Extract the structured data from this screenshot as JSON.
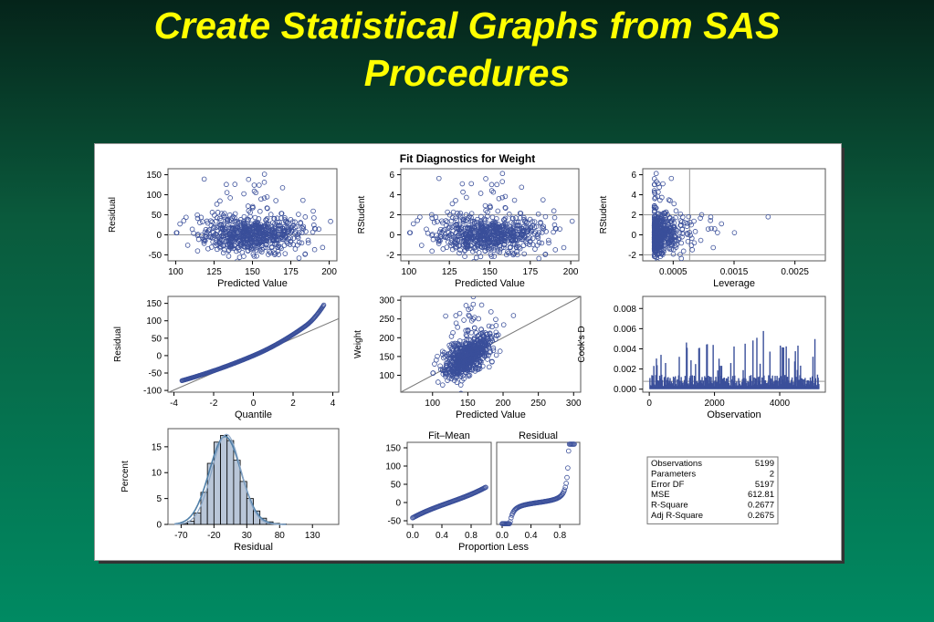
{
  "slide": {
    "title_line1": "Create Statistical Graphs from SAS",
    "title_line2": "Procedures"
  },
  "colors": {
    "background_top": "#05241a",
    "background_bottom": "#008a62",
    "title": "#ffff00",
    "marker": "#3a4f9a"
  },
  "chart_data": {
    "type": "panel",
    "title": "Fit Diagnostics for Weight",
    "plots": [
      {
        "type": "scatter",
        "xlabel": "Predicted Value",
        "ylabel": "Residual",
        "xticks": [
          100,
          125,
          150,
          175,
          200
        ],
        "yticks": [
          -50,
          0,
          50,
          100,
          150
        ],
        "xlim": [
          95,
          205
        ],
        "ylim": [
          -65,
          165
        ],
        "refline_y": 0
      },
      {
        "type": "scatter",
        "xlabel": "Predicted Value",
        "ylabel": "RStudent",
        "xticks": [
          100,
          125,
          150,
          175,
          200
        ],
        "yticks": [
          -2,
          0,
          2,
          4,
          6
        ],
        "xlim": [
          95,
          205
        ],
        "ylim": [
          -2.6,
          6.6
        ],
        "reflines_y": [
          -2,
          2
        ]
      },
      {
        "type": "scatter",
        "xlabel": "Leverage",
        "ylabel": "RStudent",
        "xticks": [
          "0.0005",
          "0.0015",
          "0.0025"
        ],
        "yticks": [
          -2,
          0,
          2,
          4,
          6
        ],
        "xlim": [
          0,
          0.003
        ],
        "ylim": [
          -2.6,
          6.6
        ],
        "reflines_y": [
          -2,
          2
        ],
        "refline_x": 0.00077
      },
      {
        "type": "qq",
        "xlabel": "Quantile",
        "ylabel": "Residual",
        "xticks": [
          -4,
          -2,
          0,
          2,
          4
        ],
        "yticks": [
          -100,
          -50,
          0,
          50,
          100,
          150
        ],
        "xlim": [
          -4.3,
          4.3
        ],
        "ylim": [
          -105,
          170
        ]
      },
      {
        "type": "scatter",
        "xlabel": "Predicted Value",
        "ylabel": "Weight",
        "xticks": [
          100,
          150,
          200,
          250,
          300
        ],
        "yticks": [
          100,
          150,
          200,
          250,
          300
        ],
        "xlim": [
          55,
          310
        ],
        "ylim": [
          55,
          310
        ],
        "identity_line": true
      },
      {
        "type": "needle",
        "xlabel": "Observation",
        "ylabel": "Cook's D",
        "xticks": [
          0,
          2000,
          4000
        ],
        "yticks": [
          "0.000",
          "0.002",
          "0.004",
          "0.006",
          "0.008"
        ],
        "xlim": [
          -200,
          5400
        ],
        "ylim": [
          -0.0003,
          0.0092
        ]
      },
      {
        "type": "histogram",
        "xlabel": "Residual",
        "ylabel": "Percent",
        "xticks": [
          -70,
          -20,
          30,
          80,
          130
        ],
        "yticks": [
          0,
          5,
          10,
          15
        ],
        "xlim": [
          -90,
          170
        ],
        "ylim": [
          0,
          18.5
        ],
        "bins": [
          -65,
          -55,
          -45,
          -35,
          -25,
          -15,
          -5,
          5,
          15,
          25,
          35,
          45,
          55,
          65,
          75,
          85
        ],
        "percent": [
          0.2,
          0.6,
          2.2,
          6.2,
          11.8,
          15.9,
          17.2,
          16.2,
          12.4,
          8.3,
          5.0,
          2.6,
          1.2,
          0.5,
          0.2,
          0.1
        ]
      },
      {
        "type": "rf_spread",
        "xlabel": "Proportion Less",
        "panel_titles": [
          "Fit–Mean",
          "Residual"
        ],
        "xticks": [
          "0.0",
          "0.4",
          "0.8"
        ],
        "yticks": [
          -50,
          0,
          50,
          100,
          150
        ],
        "ylim": [
          -60,
          165
        ]
      }
    ],
    "statistics": [
      {
        "label": "Observations",
        "value": "5199"
      },
      {
        "label": "Parameters",
        "value": "2"
      },
      {
        "label": "Error DF",
        "value": "5197"
      },
      {
        "label": "MSE",
        "value": "612.81"
      },
      {
        "label": "R-Square",
        "value": "0.2677"
      },
      {
        "label": "Adj R-Square",
        "value": "0.2675"
      }
    ]
  }
}
